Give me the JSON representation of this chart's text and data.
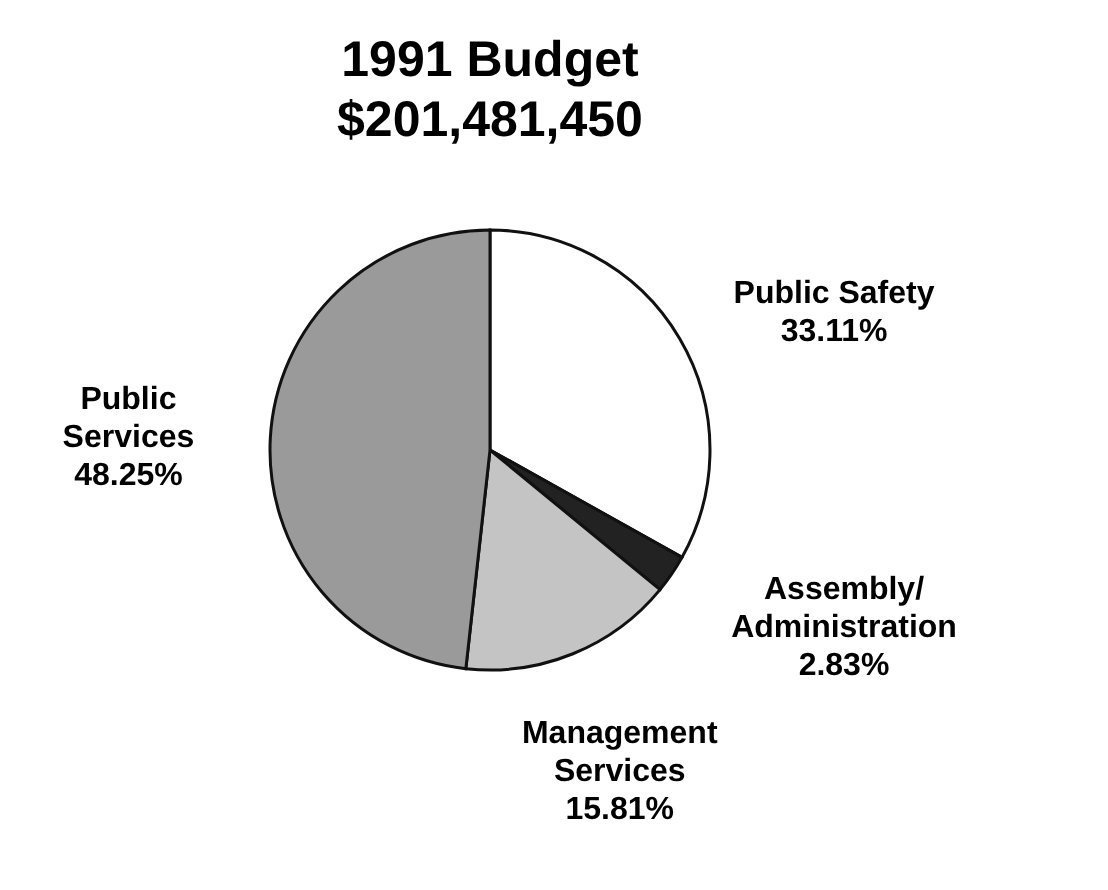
{
  "chart_data": {
    "type": "pie",
    "title": "1991 Budget\n$201,481,450",
    "categories": [
      "Public Safety",
      "Assembly/Administration",
      "Management Services",
      "Public Services"
    ],
    "values": [
      33.11,
      2.83,
      15.81,
      48.25
    ],
    "colors": [
      "#ffffff",
      "#222222",
      "#c4c4c4",
      "#9a9a9a"
    ],
    "value_labels": [
      "33.11%",
      "2.83%",
      "15.81%",
      "48.25%"
    ]
  }
}
